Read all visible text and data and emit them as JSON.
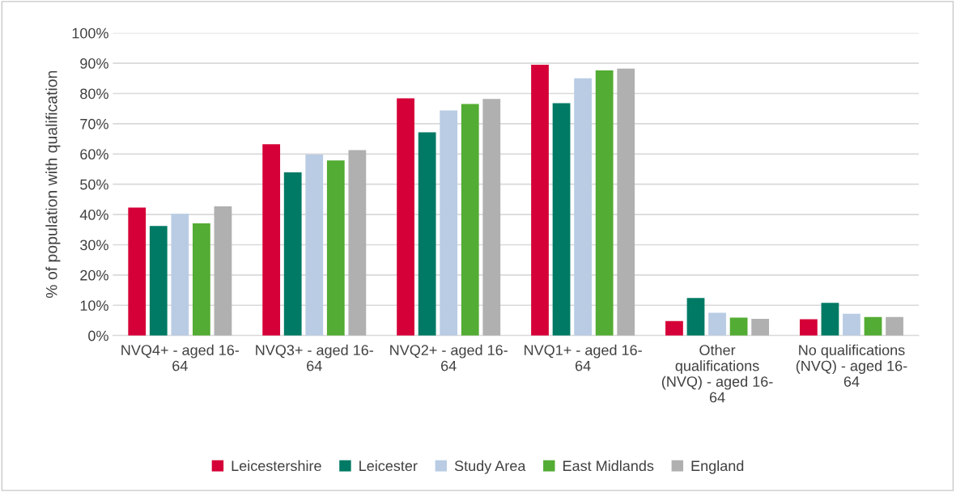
{
  "chart_data": {
    "type": "bar",
    "ylabel": "% of population with qualification",
    "categories": [
      "NVQ4+ - aged 16-\n64",
      "NVQ3+ - aged 16-\n64",
      "NVQ2+ - aged 16-\n64",
      "NVQ1+ - aged 16-\n64",
      "Other\nqualifications\n(NVQ) - aged 16-\n64",
      "No qualifications\n(NVQ) - aged 16-\n64"
    ],
    "series": [
      {
        "name": "Leicestershire",
        "color": "#d50037",
        "values": [
          42.3,
          63.2,
          78.4,
          89.5,
          4.8,
          5.4
        ]
      },
      {
        "name": "Leicester",
        "color": "#007a64",
        "values": [
          36.2,
          53.9,
          67.2,
          76.8,
          12.4,
          10.8
        ]
      },
      {
        "name": "Study Area",
        "color": "#b9cce4",
        "values": [
          40.2,
          59.8,
          74.4,
          85.0,
          7.5,
          7.2
        ]
      },
      {
        "name": "East Midlands",
        "color": "#53ac33",
        "values": [
          37.1,
          57.9,
          76.5,
          87.6,
          5.9,
          6.1
        ]
      },
      {
        "name": "England",
        "color": "#b0b0b0",
        "values": [
          42.7,
          61.3,
          78.2,
          88.2,
          5.5,
          6.1
        ]
      }
    ],
    "ylim": [
      0,
      100
    ],
    "yticks": [
      {
        "value": 0,
        "label": "0%"
      },
      {
        "value": 10,
        "label": "10%"
      },
      {
        "value": 20,
        "label": "20%"
      },
      {
        "value": 30,
        "label": "30%"
      },
      {
        "value": 40,
        "label": "40%"
      },
      {
        "value": 50,
        "label": "50%"
      },
      {
        "value": 60,
        "label": "60%"
      },
      {
        "value": 70,
        "label": "70%"
      },
      {
        "value": 80,
        "label": "80%"
      },
      {
        "value": 90,
        "label": "90%"
      },
      {
        "value": 100,
        "label": "100%"
      }
    ],
    "grid": "y",
    "legend": "bottom"
  }
}
